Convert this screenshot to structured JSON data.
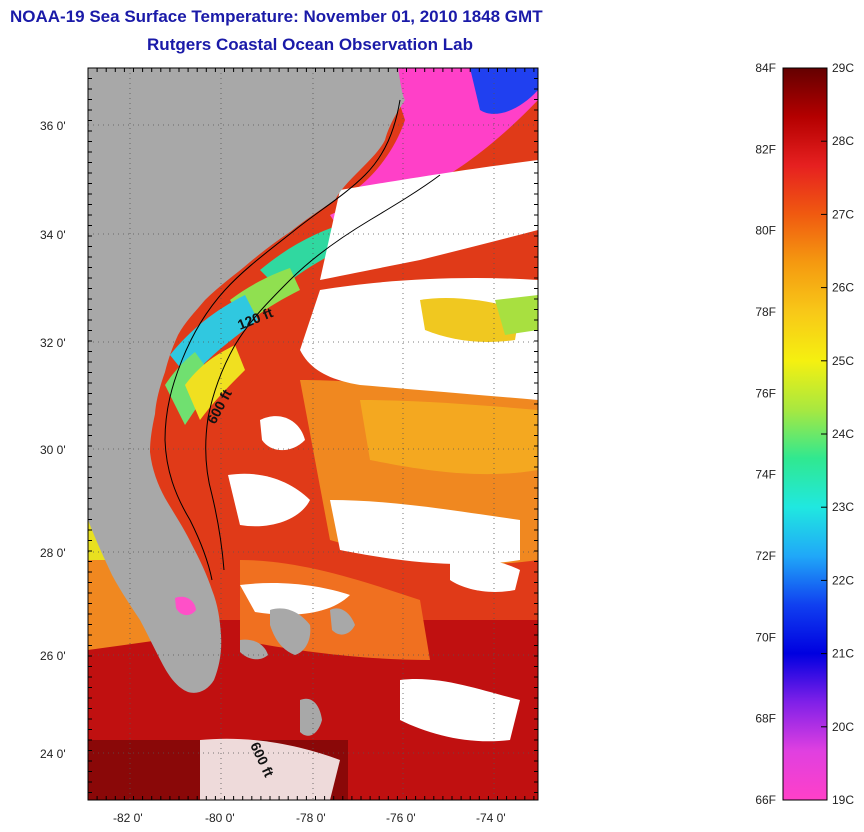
{
  "header": {
    "title": "NOAA-19 Sea Surface Temperature:  November 01, 2010 1848 GMT",
    "subtitle": "Rutgers Coastal Ocean Observation Lab"
  },
  "map": {
    "lat_ticks": [
      {
        "value": 36,
        "label": "36 0'"
      },
      {
        "value": 34,
        "label": "34 0'"
      },
      {
        "value": 32,
        "label": "32 0'"
      },
      {
        "value": 30,
        "label": "30 0'"
      },
      {
        "value": 28,
        "label": "28 0'"
      },
      {
        "value": 26,
        "label": "26 0'"
      },
      {
        "value": 24,
        "label": "24 0'"
      }
    ],
    "lon_ticks": [
      {
        "value": -82,
        "label": "-82 0'"
      },
      {
        "value": -80,
        "label": "-80 0'"
      },
      {
        "value": -78,
        "label": "-78 0'"
      },
      {
        "value": -76,
        "label": "-76 0'"
      },
      {
        "value": -74,
        "label": "-74 0'"
      }
    ],
    "contours": [
      {
        "label": "120 ft"
      },
      {
        "label": "600 ft"
      },
      {
        "label": "600 ft"
      }
    ],
    "colors": {
      "land": "#a8a8a8",
      "cloud": "#ffffff",
      "frame": "#000000"
    }
  },
  "colorbar": {
    "f_labels": [
      "84F",
      "82F",
      "80F",
      "78F",
      "76F",
      "74F",
      "72F",
      "70F",
      "68F",
      "66F"
    ],
    "c_labels": [
      "29C",
      "28C",
      "27C",
      "26C",
      "25C",
      "24C",
      "23C",
      "22C",
      "21C",
      "20C",
      "19C"
    ],
    "stops": [
      "#640000",
      "#b40000",
      "#e62020",
      "#f05a10",
      "#f59a10",
      "#f8c818",
      "#f5f010",
      "#a8e840",
      "#30e890",
      "#20e8e0",
      "#20a8f8",
      "#1040f0",
      "#0000e0",
      "#8020e8",
      "#e040e0",
      "#ff40c8"
    ]
  }
}
